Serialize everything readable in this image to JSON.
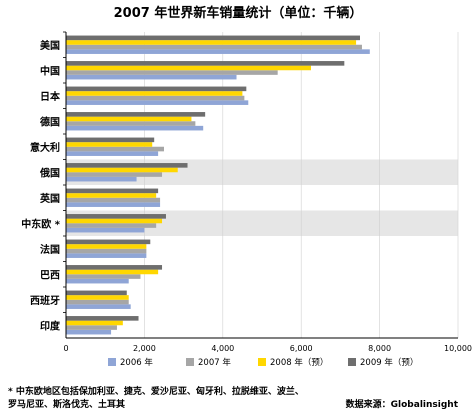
{
  "chart_data": {
    "type": "bar",
    "orientation": "horizontal",
    "title": "2007 年世界新车销量统计（单位：千辆）",
    "categories": [
      "美国",
      "中国",
      "日本",
      "德国",
      "意大利",
      "俄国",
      "英国",
      "中东欧 *",
      "法国",
      "巴西",
      "西班牙",
      "印度"
    ],
    "series": [
      {
        "name": "2006 年",
        "color": "#8fa5d6",
        "values": [
          7750,
          4350,
          4650,
          3500,
          2350,
          1800,
          2400,
          2000,
          2050,
          1600,
          1650,
          1150
        ]
      },
      {
        "name": "2007 年",
        "color": "#a6a6a6",
        "values": [
          7550,
          5400,
          4550,
          3300,
          2500,
          2450,
          2400,
          2300,
          2050,
          1900,
          1600,
          1300
        ]
      },
      {
        "name": "2008 年（预）",
        "color": "#ffd700",
        "values": [
          7400,
          6250,
          4500,
          3200,
          2200,
          2850,
          2300,
          2450,
          2050,
          2350,
          1600,
          1450
        ]
      },
      {
        "name": "2009 年（预）",
        "color": "#6e6e6e",
        "values": [
          7500,
          7100,
          4600,
          3550,
          2250,
          3100,
          2350,
          2550,
          2150,
          2450,
          1550,
          1850
        ]
      }
    ],
    "xlim": [
      0,
      10000
    ],
    "xticks": [
      "0",
      "2,000",
      "4,000",
      "6,000",
      "8,000",
      "10,000"
    ],
    "highlight_rows": [
      5,
      7
    ],
    "highlight_color": "#e6e6e6",
    "legend_position": "bottom"
  },
  "footnote_line1": "* 中东欧地区包括保加利亚、捷克、爱沙尼亚、匈牙利、拉脱维亚、波兰、",
  "footnote_line2": "罗马尼亚、斯洛伐克、土耳其",
  "source": "数据来源：Globalinsight"
}
